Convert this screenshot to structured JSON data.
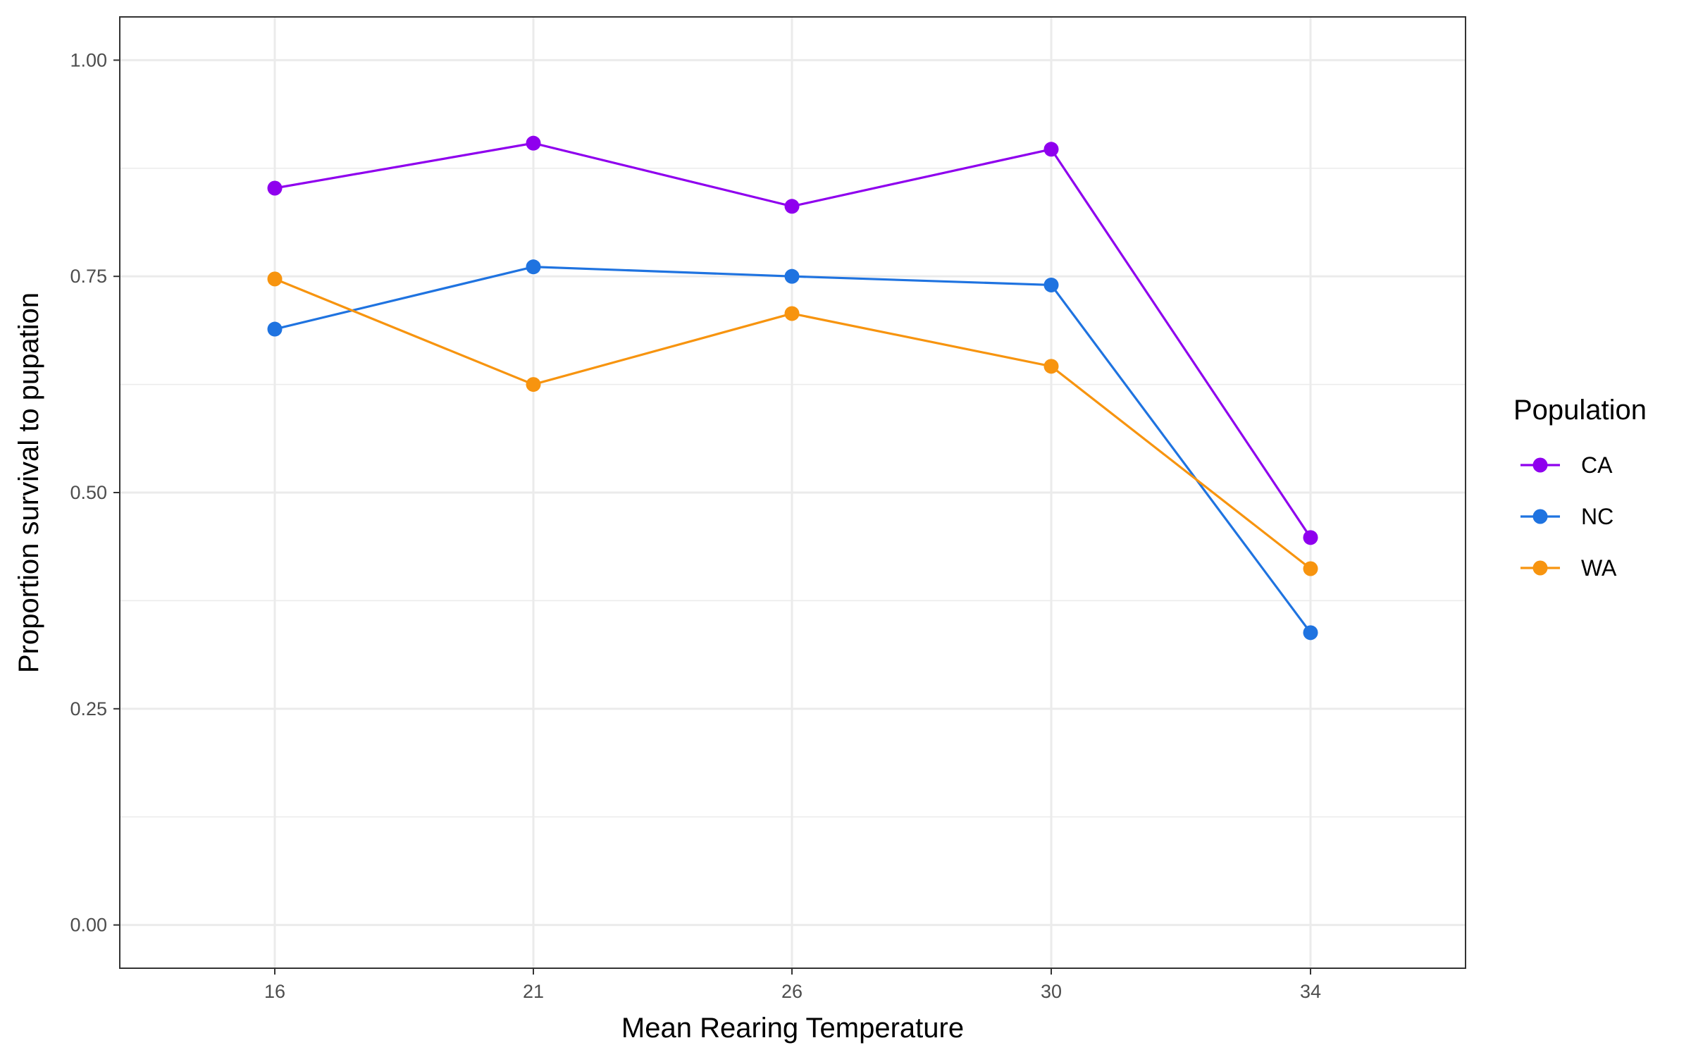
{
  "chart_data": {
    "type": "line",
    "title": "",
    "xlabel": "Mean Rearing Temperature",
    "ylabel": "Proportion survival to pupation",
    "categories": [
      "16",
      "21",
      "26",
      "30",
      "34"
    ],
    "ylim": [
      -0.05,
      1.05
    ],
    "yticks": [
      "0.00",
      "0.25",
      "0.50",
      "0.75",
      "1.00"
    ],
    "ytick_values": [
      0,
      0.25,
      0.5,
      0.75,
      1.0
    ],
    "grid": true,
    "legend": {
      "title": "Population",
      "position": "right"
    },
    "series": [
      {
        "name": "CA",
        "color": "#8F00EE",
        "values": [
          0.852,
          0.904,
          0.831,
          0.897,
          0.448
        ]
      },
      {
        "name": "NC",
        "color": "#1F73E0",
        "values": [
          0.689,
          0.761,
          0.75,
          0.74,
          0.338
        ]
      },
      {
        "name": "WA",
        "color": "#F7940F",
        "values": [
          0.747,
          0.625,
          0.707,
          0.646,
          0.412
        ]
      }
    ]
  }
}
